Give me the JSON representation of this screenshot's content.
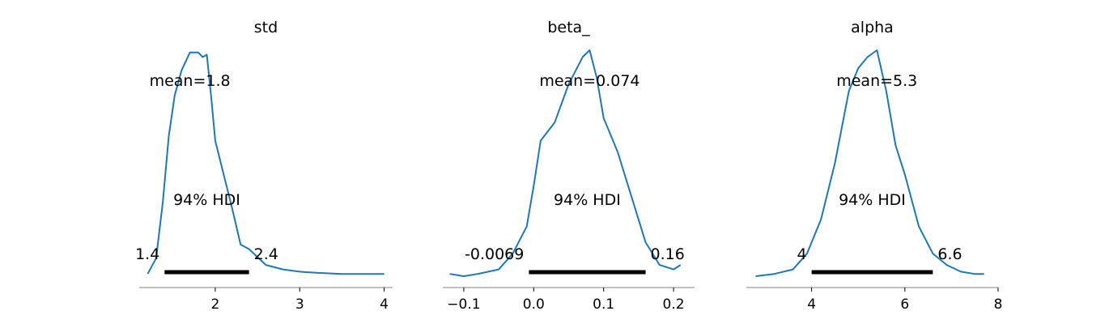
{
  "chart_data": [
    {
      "type": "line",
      "title": "std",
      "mean_label": "mean=1.8",
      "hdi_label": "94% HDI",
      "hdi": [
        1.4,
        2.4
      ],
      "hdi_labels": [
        "1.4",
        "2.4"
      ],
      "xlim": [
        1.1,
        4.1
      ],
      "xticks": [
        2,
        3,
        4
      ],
      "xtick_labels": [
        "2",
        "3",
        "4"
      ],
      "x": [
        1.2,
        1.3,
        1.38,
        1.45,
        1.52,
        1.6,
        1.7,
        1.8,
        1.85,
        1.9,
        1.95,
        2.0,
        2.1,
        2.2,
        2.3,
        2.4,
        2.6,
        2.8,
        3.0,
        3.2,
        3.5,
        4.0
      ],
      "density": [
        0.01,
        0.08,
        0.33,
        0.62,
        0.8,
        0.91,
        0.99,
        0.99,
        0.97,
        0.98,
        0.8,
        0.6,
        0.45,
        0.3,
        0.14,
        0.12,
        0.05,
        0.03,
        0.02,
        0.015,
        0.01,
        0.01
      ]
    },
    {
      "type": "line",
      "title": "beta_",
      "mean_label": "mean=0.074",
      "hdi_label": "94% HDI",
      "hdi": [
        -0.0069,
        0.16
      ],
      "hdi_labels": [
        "-0.0069",
        "0.16"
      ],
      "xlim": [
        -0.13,
        0.23
      ],
      "xticks": [
        -0.1,
        0.0,
        0.1,
        0.2
      ],
      "xtick_labels": [
        "−0.1",
        "0.0",
        "0.1",
        "0.2"
      ],
      "x": [
        -0.12,
        -0.1,
        -0.08,
        -0.05,
        -0.03,
        -0.01,
        0.0,
        0.01,
        0.03,
        0.05,
        0.07,
        0.08,
        0.09,
        0.1,
        0.12,
        0.14,
        0.16,
        0.18,
        0.2,
        0.21
      ],
      "density": [
        0.01,
        0.0,
        0.01,
        0.03,
        0.1,
        0.22,
        0.4,
        0.6,
        0.68,
        0.85,
        0.97,
        1.0,
        0.88,
        0.7,
        0.55,
        0.35,
        0.15,
        0.05,
        0.03,
        0.05
      ]
    },
    {
      "type": "line",
      "title": "alpha",
      "mean_label": "mean=5.3",
      "hdi_label": "94% HDI",
      "hdi": [
        4.0,
        6.6
      ],
      "hdi_labels": [
        "4",
        "6.6"
      ],
      "xlim": [
        2.6,
        8.0
      ],
      "xticks": [
        4,
        6,
        8
      ],
      "xtick_labels": [
        "4",
        "6",
        "8"
      ],
      "x": [
        2.8,
        3.2,
        3.6,
        3.9,
        4.2,
        4.5,
        4.8,
        5.0,
        5.2,
        5.4,
        5.6,
        5.8,
        6.0,
        6.3,
        6.6,
        6.9,
        7.2,
        7.5,
        7.7
      ],
      "density": [
        0.0,
        0.01,
        0.03,
        0.1,
        0.25,
        0.5,
        0.82,
        0.92,
        0.97,
        1.0,
        0.82,
        0.58,
        0.45,
        0.22,
        0.1,
        0.05,
        0.02,
        0.01,
        0.01
      ]
    }
  ],
  "colors": {
    "line": "#1f77b4",
    "hdi": "#000000",
    "axis": "#808080"
  }
}
